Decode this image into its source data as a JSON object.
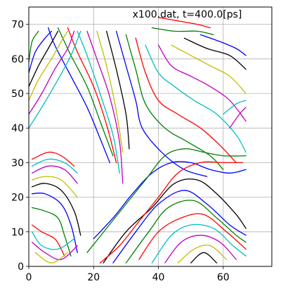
{
  "chart_data": {
    "type": "line",
    "title": "x100.dat, t=400.0[ps]",
    "xlabel": "",
    "ylabel": "",
    "xlim": [
      0,
      75
    ],
    "ylim": [
      0,
      75
    ],
    "xticks": [
      0,
      20,
      40,
      60
    ],
    "yticks": [
      0,
      10,
      20,
      30,
      40,
      50,
      60,
      70
    ],
    "grid": true,
    "colors": [
      "#0000ff",
      "#008000",
      "#ff0000",
      "#00bfbf",
      "#bf00bf",
      "#bfbf00",
      "#000000"
    ],
    "series": [
      {
        "x": [
          6,
          8,
          13,
          18,
          22,
          25
        ],
        "y": [
          69,
          64,
          55,
          46,
          37,
          30
        ]
      },
      {
        "x": [
          9,
          13,
          18,
          22,
          26
        ],
        "y": [
          69,
          61,
          52,
          42,
          32
        ]
      },
      {
        "x": [
          12,
          15,
          20,
          24,
          27
        ],
        "y": [
          69,
          62,
          52,
          41,
          30
        ]
      },
      {
        "x": [
          15,
          18,
          22,
          26,
          28
        ],
        "y": [
          68,
          61,
          50,
          38,
          27
        ]
      },
      {
        "x": [
          18,
          21,
          25,
          28,
          29
        ],
        "y": [
          68,
          60,
          49,
          36,
          24
        ]
      },
      {
        "x": [
          21,
          24,
          27,
          29
        ],
        "y": [
          68,
          58,
          45,
          33
        ]
      },
      {
        "x": [
          24,
          27,
          30,
          31
        ],
        "y": [
          68,
          57,
          44,
          34
        ]
      },
      {
        "x": [
          27,
          30,
          33,
          35,
          41,
          48,
          55
        ],
        "y": [
          68,
          58,
          48,
          40,
          33,
          28,
          26
        ]
      },
      {
        "x": [
          30,
          33,
          36,
          42,
          49,
          56,
          60
        ],
        "y": [
          67,
          57,
          47,
          40,
          36,
          32,
          28
        ]
      },
      {
        "x": [
          33,
          36,
          40,
          46,
          53,
          59,
          64
        ],
        "y": [
          66,
          56,
          48,
          44,
          40,
          35,
          30
        ]
      },
      {
        "x": [
          36,
          40,
          45,
          51,
          58,
          64,
          67
        ],
        "y": [
          64,
          56,
          52,
          48,
          44,
          38,
          33
        ]
      },
      {
        "x": [
          40,
          44,
          50,
          56,
          62,
          67
        ],
        "y": [
          64,
          58,
          55,
          52,
          48,
          42
        ]
      },
      {
        "x": [
          44,
          50,
          56,
          62,
          67
        ],
        "y": [
          64,
          61,
          58,
          55,
          50
        ]
      },
      {
        "x": [
          48,
          55,
          62,
          67
        ],
        "y": [
          66,
          63,
          61,
          57
        ]
      },
      {
        "x": [
          53,
          59,
          64,
          67
        ],
        "y": [
          67,
          65,
          63,
          61
        ]
      },
      {
        "x": [
          38,
          45,
          52,
          57
        ],
        "y": [
          69,
          68,
          68,
          67
        ]
      },
      {
        "x": [
          40,
          46,
          52,
          56
        ],
        "y": [
          72,
          71,
          70,
          69
        ]
      },
      {
        "x": [
          0,
          4,
          9,
          13,
          16
        ],
        "y": [
          40,
          46,
          54,
          61,
          68
        ]
      },
      {
        "x": [
          0,
          4,
          8,
          12,
          14
        ],
        "y": [
          44,
          50,
          57,
          63,
          68
        ]
      },
      {
        "x": [
          0,
          3,
          7,
          10,
          12
        ],
        "y": [
          48,
          54,
          60,
          65,
          68
        ]
      },
      {
        "x": [
          0,
          3,
          6,
          9
        ],
        "y": [
          52,
          58,
          63,
          68
        ]
      },
      {
        "x": [
          0,
          2,
          5,
          7
        ],
        "y": [
          56,
          62,
          66,
          68
        ]
      },
      {
        "x": [
          0,
          1,
          3
        ],
        "y": [
          59,
          65,
          68
        ]
      },
      {
        "x": [
          1,
          6,
          10,
          14
        ],
        "y": [
          31,
          33,
          32,
          29
        ]
      },
      {
        "x": [
          1,
          6,
          11,
          15
        ],
        "y": [
          29,
          31,
          30,
          27
        ]
      },
      {
        "x": [
          1,
          6,
          11,
          15
        ],
        "y": [
          27,
          29,
          28,
          24
        ]
      },
      {
        "x": [
          1,
          5,
          10,
          15
        ],
        "y": [
          25,
          26,
          25,
          20
        ]
      },
      {
        "x": [
          1,
          5,
          10,
          14,
          16
        ],
        "y": [
          23,
          24,
          22,
          16,
          9
        ]
      },
      {
        "x": [
          1,
          5,
          10,
          13,
          15
        ],
        "y": [
          21,
          21,
          18,
          12,
          4
        ]
      },
      {
        "x": [
          1,
          5,
          9,
          11,
          13
        ],
        "y": [
          17,
          16,
          14,
          9,
          3
        ]
      },
      {
        "x": [
          1,
          4,
          8,
          10,
          11
        ],
        "y": [
          12,
          10,
          8,
          5,
          3
        ]
      },
      {
        "x": [
          1,
          4,
          9,
          14
        ],
        "y": [
          10,
          6,
          5,
          8
        ]
      },
      {
        "x": [
          1,
          5,
          10,
          15
        ],
        "y": [
          7,
          4,
          2,
          6
        ]
      },
      {
        "x": [
          2,
          7,
          12
        ],
        "y": [
          4,
          1,
          4
        ]
      },
      {
        "x": [
          23,
          30,
          38,
          45,
          52,
          58,
          64,
          67
        ],
        "y": [
          1,
          10,
          17,
          24,
          25,
          21,
          15,
          11
        ]
      },
      {
        "x": [
          26,
          33,
          40,
          48,
          55,
          62,
          67
        ],
        "y": [
          1,
          10,
          18,
          22,
          18,
          12,
          9
        ]
      },
      {
        "x": [
          30,
          37,
          43,
          51,
          58,
          64,
          67
        ],
        "y": [
          1,
          10,
          17,
          19,
          14,
          9,
          7
        ]
      },
      {
        "x": [
          34,
          40,
          47,
          54,
          61,
          67
        ],
        "y": [
          2,
          10,
          14,
          15,
          10,
          5
        ]
      },
      {
        "x": [
          38,
          44,
          50,
          57,
          63,
          67
        ],
        "y": [
          1,
          9,
          12,
          11,
          6,
          3
        ]
      },
      {
        "x": [
          42,
          47,
          53,
          59,
          64
        ],
        "y": [
          1,
          7,
          9,
          7,
          2
        ]
      },
      {
        "x": [
          46,
          51,
          56,
          61
        ],
        "y": [
          1,
          5,
          6,
          2
        ]
      },
      {
        "x": [
          50,
          54,
          58
        ],
        "y": [
          1,
          4,
          1
        ]
      },
      {
        "x": [
          20,
          26,
          32,
          38,
          44,
          50,
          56,
          62,
          67
        ],
        "y": [
          8,
          14,
          21,
          27,
          30,
          30,
          28,
          27,
          28
        ]
      },
      {
        "x": [
          18,
          24,
          30,
          36,
          42,
          48,
          54,
          60,
          67
        ],
        "y": [
          4,
          11,
          18,
          25,
          32,
          34,
          33,
          32,
          32
        ]
      },
      {
        "x": [
          22,
          28,
          34,
          40,
          46,
          53,
          60,
          66
        ],
        "y": [
          1,
          6,
          13,
          20,
          27,
          30,
          30,
          30
        ]
      },
      {
        "x": [
          60,
          64,
          67
        ],
        "y": [
          44,
          47,
          48
        ]
      },
      {
        "x": [
          62,
          65,
          67
        ],
        "y": [
          40,
          44,
          46
        ]
      }
    ]
  }
}
